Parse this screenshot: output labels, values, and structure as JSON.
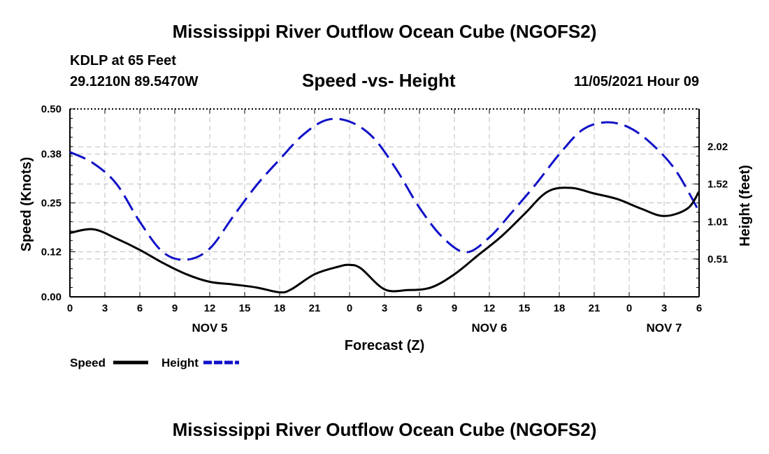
{
  "header": {
    "main_title": "Mississippi River Outflow Ocean Cube (NGOFS2)",
    "station": "KDLP at 65 Feet",
    "coords": "29.1210N  89.5470W",
    "subtitle": "Speed -vs- Height",
    "datetime": "11/05/2021 Hour 09"
  },
  "footer": {
    "main_title": "Mississippi River Outflow Ocean Cube (NGOFS2)"
  },
  "chart_data": {
    "type": "line",
    "title": "Speed -vs- Height",
    "xlabel": "Forecast (Z)",
    "ylabel_left": "Speed (Knots)",
    "ylabel_right": "Height (feet)",
    "x_unit": "forecast hour",
    "xlim": [
      0,
      54
    ],
    "x_tick_step": 3,
    "x_tick_labels": [
      "0",
      "3",
      "6",
      "9",
      "12",
      "15",
      "18",
      "21",
      "0",
      "3",
      "6",
      "9",
      "12",
      "15",
      "18",
      "21",
      "0",
      "3",
      "6"
    ],
    "date_labels": [
      {
        "label": "NOV 5",
        "hour": 12
      },
      {
        "label": "NOV 6",
        "hour": 36
      },
      {
        "label": "NOV 7",
        "hour": 51
      }
    ],
    "left_axis": {
      "ylim": [
        0,
        0.5
      ],
      "ticks": [
        0.0,
        0.12,
        0.25,
        0.38,
        0.5
      ],
      "tick_labels": [
        "0.00",
        "0.12",
        "0.25",
        "0.38",
        "0.50"
      ]
    },
    "right_axis": {
      "ylim": [
        0,
        2.53
      ],
      "ticks": [
        0.51,
        1.01,
        1.52,
        2.02
      ],
      "tick_labels": [
        "0.51",
        "1.01",
        "1.52",
        "2.02"
      ]
    },
    "grid": true,
    "legend": {
      "position": "bottom-left",
      "entries": [
        "Speed",
        "Height"
      ]
    },
    "series": [
      {
        "name": "Speed",
        "axis": "left",
        "color": "#000000",
        "style": "solid",
        "x": [
          0,
          2,
          4,
          6,
          8,
          10,
          12,
          14,
          16,
          18,
          19,
          21,
          23,
          24,
          25,
          27,
          29,
          31,
          33,
          35,
          37,
          39,
          41,
          43,
          45,
          47,
          49,
          51,
          53,
          54
        ],
        "values": [
          0.17,
          0.18,
          0.155,
          0.125,
          0.09,
          0.06,
          0.04,
          0.033,
          0.025,
          0.012,
          0.02,
          0.06,
          0.08,
          0.085,
          0.075,
          0.02,
          0.018,
          0.025,
          0.06,
          0.11,
          0.16,
          0.22,
          0.28,
          0.29,
          0.275,
          0.26,
          0.235,
          0.215,
          0.235,
          0.28
        ]
      },
      {
        "name": "Height",
        "axis": "right",
        "color": "#1010c8",
        "style": "dashed",
        "x": [
          0,
          2,
          4,
          6,
          8,
          10,
          12,
          14,
          16,
          18,
          20,
          22,
          24,
          26,
          28,
          30,
          32,
          34,
          36,
          38,
          40,
          42,
          44,
          46,
          48,
          50,
          52,
          54
        ],
        "values": [
          1.95,
          1.8,
          1.52,
          1.01,
          0.6,
          0.5,
          0.65,
          1.08,
          1.5,
          1.85,
          2.18,
          2.38,
          2.36,
          2.15,
          1.72,
          1.2,
          0.8,
          0.6,
          0.8,
          1.15,
          1.52,
          1.92,
          2.25,
          2.35,
          2.28,
          2.05,
          1.7,
          1.15
        ]
      }
    ]
  }
}
